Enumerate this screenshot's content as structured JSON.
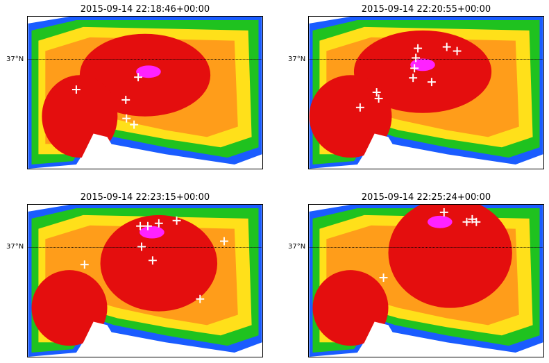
{
  "figure": {
    "panels": [
      {
        "title": "2015-09-14 22:18:46+00:00",
        "lat_label": "37°N",
        "core": [
          [
            170,
            85,
            95,
            60
          ],
          [
            75,
            145,
            55,
            60
          ]
        ],
        "magenta": [
          [
            175,
            80
          ]
        ],
        "markers": [
          [
            70,
            106
          ],
          [
            160,
            88
          ],
          [
            142,
            121
          ],
          [
            143,
            148
          ],
          [
            154,
            157
          ]
        ]
      },
      {
        "title": "2015-09-14 22:20:55+00:00",
        "lat_label": "37°N",
        "core": [
          [
            165,
            80,
            100,
            60
          ],
          [
            60,
            145,
            60,
            60
          ]
        ],
        "magenta": [
          [
            165,
            70
          ]
        ],
        "markers": [
          [
            158,
            46
          ],
          [
            200,
            44
          ],
          [
            215,
            50
          ],
          [
            155,
            60
          ],
          [
            153,
            75
          ],
          [
            151,
            89
          ],
          [
            178,
            95
          ],
          [
            98,
            110
          ],
          [
            101,
            119
          ],
          [
            74,
            132
          ]
        ]
      },
      {
        "title": "2015-09-14 22:23:15+00:00",
        "lat_label": "37°N",
        "core": [
          [
            190,
            85,
            85,
            70
          ],
          [
            60,
            150,
            55,
            55
          ]
        ],
        "magenta": [
          [
            180,
            40
          ]
        ],
        "markers": [
          [
            163,
            31
          ],
          [
            174,
            31
          ],
          [
            190,
            27
          ],
          [
            216,
            23
          ],
          [
            165,
            61
          ],
          [
            181,
            81
          ],
          [
            285,
            53
          ],
          [
            82,
            87
          ],
          [
            250,
            137
          ]
        ]
      },
      {
        "title": "2015-09-14 22:25:24+00:00",
        "lat_label": "37°N",
        "core": [
          [
            205,
            70,
            90,
            80
          ],
          [
            60,
            150,
            55,
            55
          ]
        ],
        "magenta": [
          [
            190,
            25
          ]
        ],
        "markers": [
          [
            196,
            11
          ],
          [
            229,
            25
          ],
          [
            237,
            21
          ],
          [
            243,
            25
          ],
          [
            108,
            106
          ]
        ]
      }
    ],
    "colors": {
      "blue": "#1a5cff",
      "lightblue": "#22a8ff",
      "green": "#1fc21f",
      "darkgreen": "#0e9f0e",
      "yellow": "#ffe01a",
      "orange": "#ff9d1a",
      "red": "#e40e0e",
      "darkred": "#d20a0a",
      "magenta": "#ff22ff",
      "marker": "#ffffff"
    }
  }
}
